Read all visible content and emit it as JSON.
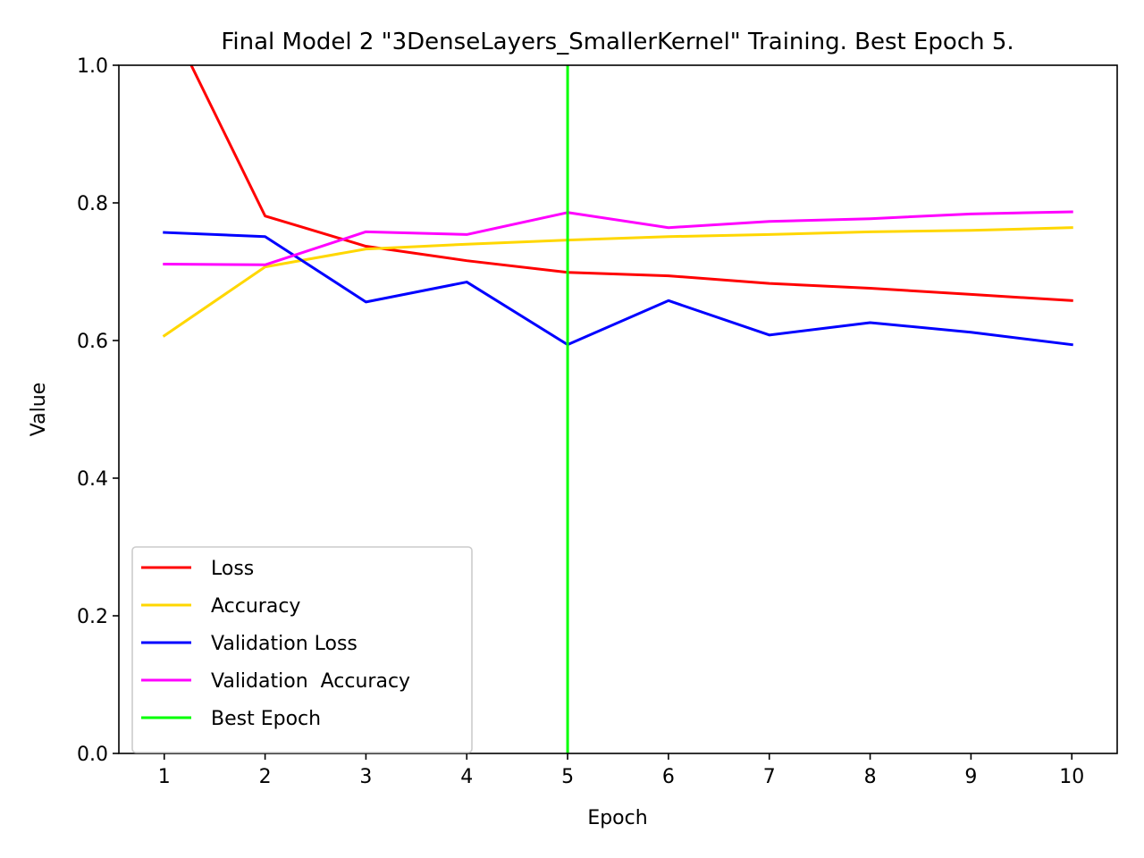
{
  "chart_data": {
    "type": "line",
    "title": "Final Model 2 \"3DenseLayers_SmallerKernel\" Training. Best Epoch 5.",
    "xlabel": "Epoch",
    "ylabel": "Value",
    "xlim": [
      0.55,
      10.45
    ],
    "ylim": [
      0.0,
      1.0
    ],
    "x": [
      1,
      2,
      3,
      4,
      5,
      6,
      7,
      8,
      9,
      10
    ],
    "xticks": [
      1,
      2,
      3,
      4,
      5,
      6,
      7,
      8,
      9,
      10
    ],
    "xtick_labels": [
      "1",
      "2",
      "3",
      "4",
      "5",
      "6",
      "7",
      "8",
      "9",
      "10"
    ],
    "yticks": [
      0.0,
      0.2,
      0.4,
      0.6,
      0.8,
      1.0
    ],
    "ytick_labels": [
      "0.0",
      "0.2",
      "0.4",
      "0.6",
      "0.8",
      "1.0"
    ],
    "grid": false,
    "legend_position": "lower-left",
    "series": [
      {
        "name": "Loss",
        "color": "#ff0000",
        "values": [
          1.08,
          0.781,
          0.737,
          0.716,
          0.699,
          0.694,
          0.683,
          0.676,
          0.667,
          0.658
        ]
      },
      {
        "name": "Accuracy",
        "color": "#ffd700",
        "values": [
          0.607,
          0.707,
          0.733,
          0.74,
          0.746,
          0.751,
          0.754,
          0.758,
          0.76,
          0.764
        ]
      },
      {
        "name": "Validation Loss",
        "color": "#0000ff",
        "values": [
          0.757,
          0.751,
          0.656,
          0.685,
          0.594,
          0.658,
          0.608,
          0.626,
          0.612,
          0.594
        ]
      },
      {
        "name": "Validation  Accuracy",
        "color": "#ff00ff",
        "values": [
          0.711,
          0.71,
          0.758,
          0.754,
          0.786,
          0.764,
          0.773,
          0.777,
          0.784,
          0.787
        ]
      }
    ],
    "vline": {
      "name": "Best Epoch",
      "x": 5,
      "color": "#00ff00"
    }
  }
}
